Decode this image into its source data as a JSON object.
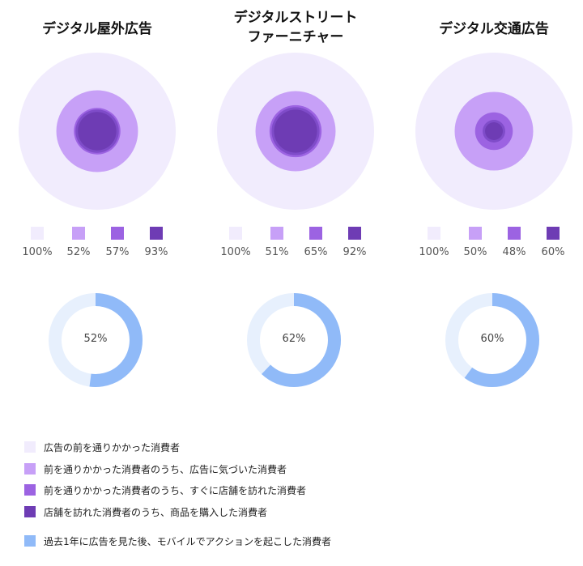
{
  "colors": {
    "level1": "#f1ecfd",
    "level2": "#c7a0f7",
    "level3": "#9c63e2",
    "level4": "#6e3cb4",
    "mobile": "#90baf8",
    "mobile_track": "#e7f0fd"
  },
  "chart_data": [
    {
      "type": "funnel-circles",
      "title": "デジタル屋外広告",
      "values": [
        100,
        52,
        57,
        93
      ],
      "labels": [
        "100%",
        "52%",
        "57%",
        "93%"
      ],
      "mobile_action": 52,
      "mobile_label": "52%"
    },
    {
      "type": "funnel-circles",
      "title": "デジタルストリート\nファーニチャー",
      "values": [
        100,
        51,
        65,
        92
      ],
      "labels": [
        "100%",
        "51%",
        "65%",
        "92%"
      ],
      "mobile_action": 62,
      "mobile_label": "62%"
    },
    {
      "type": "funnel-circles",
      "title": "デジタル交通広告",
      "values": [
        100,
        50,
        48,
        60
      ],
      "labels": [
        "100%",
        "50%",
        "48%",
        "60%"
      ],
      "mobile_action": 60,
      "mobile_label": "60%"
    }
  ],
  "legend": [
    "広告の前を通りかかった消費者",
    "前を通りかかった消費者のうち、広告に気づいた消費者",
    "前を通りかかった消費者のうち、すぐに店舗を訪れた消費者",
    "店舗を訪れた消費者のうち、商品を購入した消費者",
    "過去1年に広告を見た後、モバイルでアクションを起こした消費者"
  ]
}
